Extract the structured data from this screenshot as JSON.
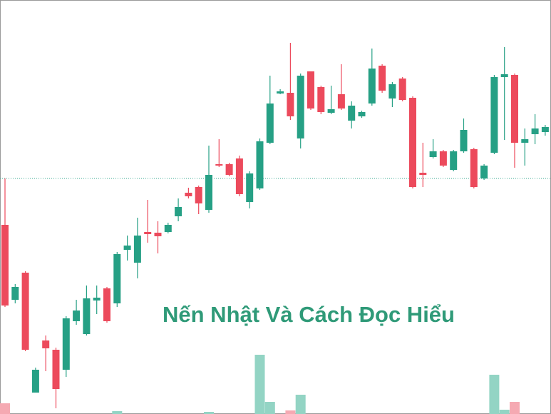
{
  "chart_data": {
    "type": "candlestick",
    "title": "Nến Nhật Và Cách Đọc Hiểu",
    "open": [
      265,
      160,
      198,
      30,
      103,
      90,
      62,
      130,
      112,
      159,
      176,
      155,
      230,
      212,
      255,
      254,
      255,
      277,
      310,
      318,
      286,
      350,
      350,
      358,
      297,
      316,
      380,
      449,
      450,
      386,
      480,
      458,
      422,
      448,
      411,
      417,
      435,
      488,
      442,
      470,
      443,
      338,
      360,
      368,
      342,
      368,
      371,
      330,
      366,
      472,
      475,
      380,
      392,
      395
    ],
    "high": [
      330,
      182,
      200,
      65,
      110,
      93,
      137,
      160,
      180,
      180,
      178,
      227,
      250,
      275,
      300,
      270,
      268,
      302,
      317,
      320,
      376,
      385,
      352,
      362,
      340,
      386,
      474,
      455,
      520,
      477,
      480,
      460,
      460,
      490,
      438,
      425,
      512,
      490,
      465,
      472,
      445,
      380,
      385,
      370,
      370,
      414,
      373,
      350,
      475,
      514,
      477,
      400,
      420,
      405
    ],
    "low": [
      150,
      155,
      88,
      30,
      60,
      8,
      52,
      125,
      110,
      140,
      128,
      150,
      215,
      190,
      240,
      225,
      253,
      270,
      302,
      280,
      282,
      346,
      333,
      305,
      288,
      314,
      378,
      448,
      412,
      372,
      426,
      420,
      420,
      426,
      400,
      415,
      432,
      450,
      430,
      438,
      316,
      318,
      358,
      346,
      340,
      366,
      316,
      328,
      364,
      384,
      345,
      348,
      378,
      390
    ],
    "close": [
      152,
      178,
      90,
      62,
      92,
      35,
      134,
      145,
      162,
      163,
      130,
      224,
      236,
      250,
      252,
      249,
      265,
      290,
      305,
      295,
      335,
      348,
      335,
      308,
      337,
      382,
      435,
      452,
      417,
      474,
      428,
      423,
      427,
      428,
      432,
      423,
      484,
      453,
      462,
      440,
      318,
      335,
      368,
      348,
      368,
      398,
      318,
      348,
      472,
      476,
      380,
      385,
      400,
      402
    ],
    "volume": [
      15,
      null,
      null,
      null,
      null,
      null,
      null,
      null,
      null,
      null,
      null,
      4,
      null,
      null,
      null,
      null,
      null,
      null,
      null,
      null,
      3,
      null,
      null,
      null,
      null,
      83,
      17,
      null,
      5,
      27,
      null,
      null,
      null,
      null,
      null,
      null,
      null,
      null,
      null,
      null,
      null,
      null,
      null,
      null,
      null,
      null,
      null,
      null,
      55,
      6,
      17,
      null,
      null,
      null
    ],
    "price_line": 330,
    "ylim": [
      0,
      580
    ],
    "up_color": "#26a085",
    "down_color": "#ec4a5c",
    "volume_up_color": "#93d4c4",
    "volume_down_color": "#f5a9b2"
  }
}
